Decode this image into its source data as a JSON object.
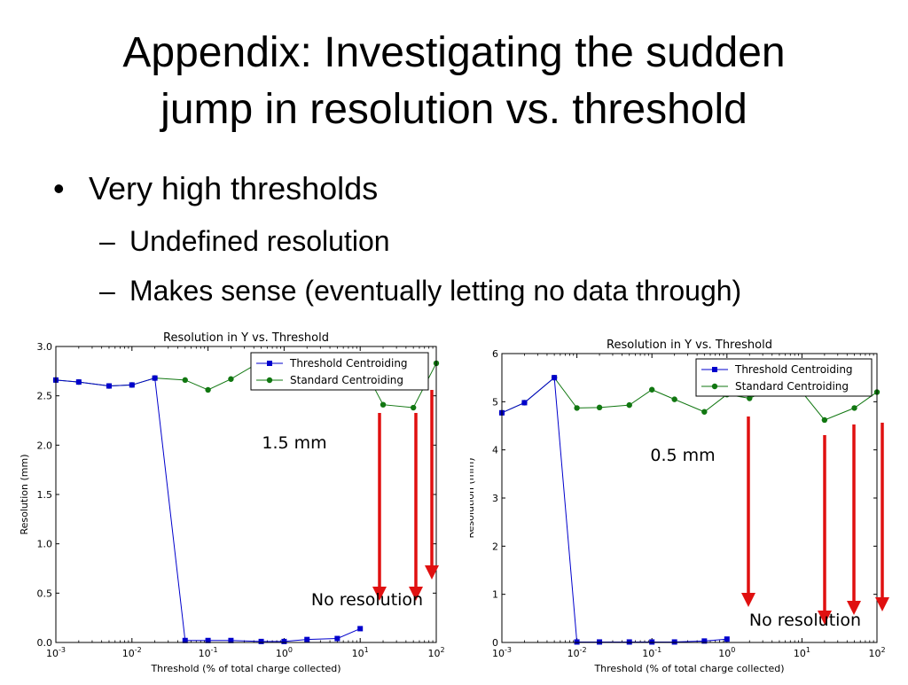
{
  "slide": {
    "title_line1": "Appendix: Investigating the sudden",
    "title_line2": "jump in resolution vs. threshold",
    "bullets": {
      "l1_symbol": "•",
      "l1_text": "Very high thresholds",
      "l2_symbol": "–",
      "l2_items": [
        "Undefined resolution",
        "Makes sense (eventually letting no data through)"
      ]
    }
  },
  "colors": {
    "threshold": "#0000cc",
    "standard": "#117711",
    "arrow": "#e01010"
  },
  "chart_data": [
    {
      "type": "line",
      "title": "Resolution in Y vs. Threshold",
      "xlabel": "Threshold (% of total charge collected)",
      "ylabel": "Resolution (mm)",
      "xscale": "log",
      "xlim": [
        0.001,
        100
      ],
      "ylim": [
        0,
        3.0
      ],
      "xticks": [
        "10-3",
        "10-2",
        "10-1",
        "100",
        "101",
        "102"
      ],
      "yticks": [
        "0.0",
        "0.5",
        "1.0",
        "1.5",
        "2.0",
        "2.5",
        "3.0"
      ],
      "legend_position": "top-right",
      "series": [
        {
          "name": "Threshold Centroiding",
          "x": [
            0.001,
            0.002,
            0.005,
            0.01,
            0.02,
            0.05,
            0.1,
            0.2,
            0.5,
            1,
            2,
            5,
            10
          ],
          "y": [
            2.66,
            2.64,
            2.6,
            2.61,
            2.68,
            0.02,
            0.02,
            0.02,
            0.01,
            0.01,
            0.03,
            0.04,
            0.14
          ]
        },
        {
          "name": "Standard Centroiding",
          "x": [
            0.001,
            0.002,
            0.005,
            0.01,
            0.02,
            0.05,
            0.1,
            0.2,
            0.5,
            1,
            2,
            5,
            10,
            20,
            50,
            100
          ],
          "y": [
            2.66,
            2.64,
            2.6,
            2.61,
            2.68,
            2.66,
            2.56,
            2.67,
            2.85,
            2.85,
            2.85,
            2.85,
            2.85,
            2.41,
            2.38,
            2.83
          ]
        }
      ],
      "annotations": [
        "1.5 mm",
        "No resolution"
      ]
    },
    {
      "type": "line",
      "title": "Resolution in Y vs. Threshold",
      "xlabel": "Threshold (% of total charge collected)",
      "ylabel": "Resolution (mm)",
      "xscale": "log",
      "xlim": [
        0.001,
        100
      ],
      "ylim": [
        0,
        6
      ],
      "xticks": [
        "10-3",
        "10-2",
        "10-1",
        "100",
        "101",
        "102"
      ],
      "yticks": [
        "0",
        "1",
        "2",
        "3",
        "4",
        "5",
        "6"
      ],
      "legend_position": "top-right",
      "series": [
        {
          "name": "Threshold Centroiding",
          "x": [
            0.001,
            0.002,
            0.005,
            0.01,
            0.02,
            0.05,
            0.1,
            0.2,
            0.5,
            1
          ],
          "y": [
            4.77,
            4.98,
            5.5,
            0.01,
            0.01,
            0.01,
            0.01,
            0.01,
            0.03,
            0.07
          ]
        },
        {
          "name": "Standard Centroiding",
          "x": [
            0.001,
            0.002,
            0.005,
            0.01,
            0.02,
            0.05,
            0.1,
            0.2,
            0.5,
            1,
            2,
            5,
            10,
            20,
            50,
            100
          ],
          "y": [
            4.77,
            4.98,
            5.5,
            4.87,
            4.88,
            4.93,
            5.25,
            5.05,
            4.79,
            5.15,
            5.07,
            5.35,
            5.2,
            4.62,
            4.87,
            5.2
          ]
        }
      ],
      "annotations": [
        "0.5 mm",
        "No resolution"
      ]
    }
  ]
}
